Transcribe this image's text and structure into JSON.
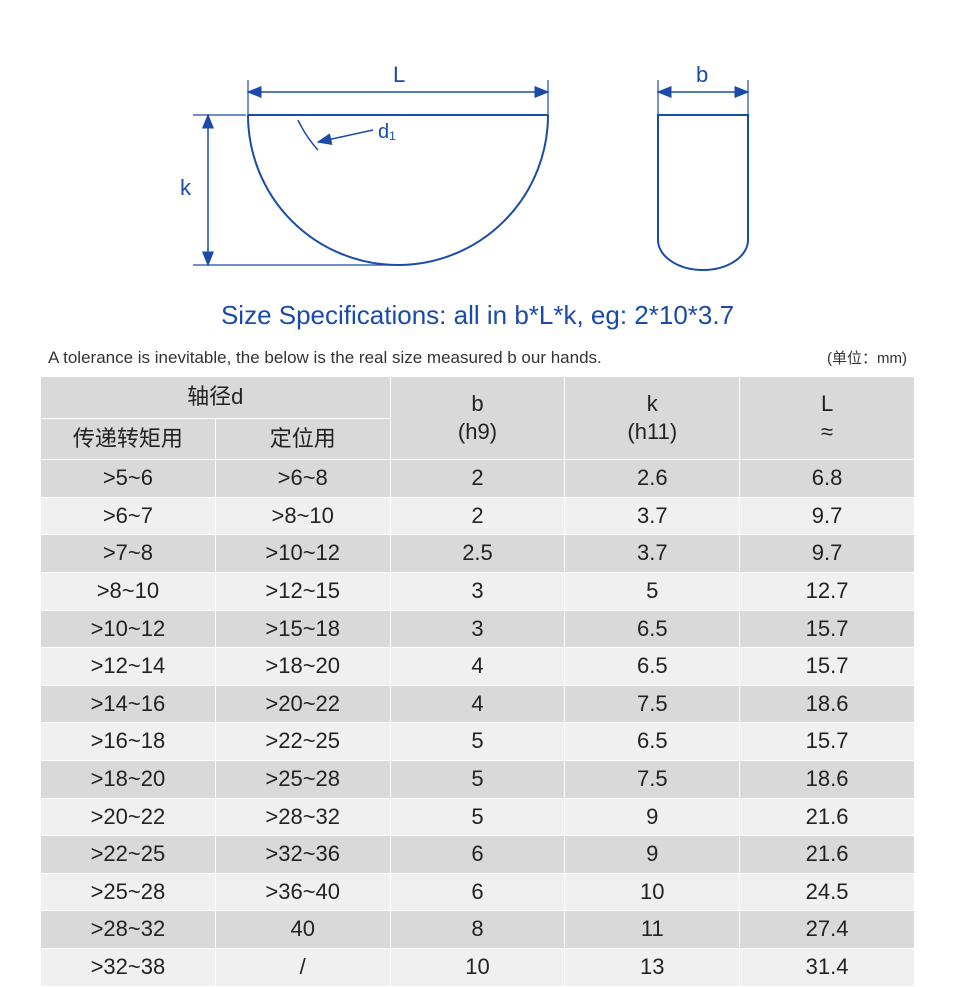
{
  "diagram": {
    "label_L": "L",
    "label_b": "b",
    "label_k": "k",
    "label_d1": "d₁",
    "stroke": "#1a4ba8",
    "stroke_width": 2,
    "dim_stroke": "#1a4ba8",
    "font_size": 22
  },
  "title": "Size Specifications: all in b*L*k, eg: 2*10*3.7",
  "title_color": "#1a4ba8",
  "note": "A tolerance is inevitable, the below is the real size measured b our hands.",
  "unit_label": "(单位：mm)",
  "table": {
    "header_bg": "#d9d9d9",
    "row_bg_even": "#d9d9d9",
    "row_bg_odd": "#f0f0f0",
    "border_color": "#ffffff",
    "font_size": 22,
    "text_color": "#222222",
    "group_header": "轴径d",
    "sub_headers": [
      "传递转矩用",
      "定位用"
    ],
    "col_headers": [
      "b",
      "k",
      "L"
    ],
    "col_sub": [
      "(h9)",
      "(h11)",
      "≈"
    ],
    "rows": [
      [
        ">5~6",
        ">6~8",
        "2",
        "2.6",
        "6.8"
      ],
      [
        ">6~7",
        ">8~10",
        "2",
        "3.7",
        "9.7"
      ],
      [
        ">7~8",
        ">10~12",
        "2.5",
        "3.7",
        "9.7"
      ],
      [
        ">8~10",
        ">12~15",
        "3",
        "5",
        "12.7"
      ],
      [
        ">10~12",
        ">15~18",
        "3",
        "6.5",
        "15.7"
      ],
      [
        ">12~14",
        ">18~20",
        "4",
        "6.5",
        "15.7"
      ],
      [
        ">14~16",
        ">20~22",
        "4",
        "7.5",
        "18.6"
      ],
      [
        ">16~18",
        ">22~25",
        "5",
        "6.5",
        "15.7"
      ],
      [
        ">18~20",
        ">25~28",
        "5",
        "7.5",
        "18.6"
      ],
      [
        ">20~22",
        ">28~32",
        "5",
        "9",
        "21.6"
      ],
      [
        ">22~25",
        ">32~36",
        "6",
        "9",
        "21.6"
      ],
      [
        ">25~28",
        ">36~40",
        "6",
        "10",
        "24.5"
      ],
      [
        ">28~32",
        "40",
        "8",
        "11",
        "27.4"
      ],
      [
        ">32~38",
        "/",
        "10",
        "13",
        "31.4"
      ]
    ]
  }
}
